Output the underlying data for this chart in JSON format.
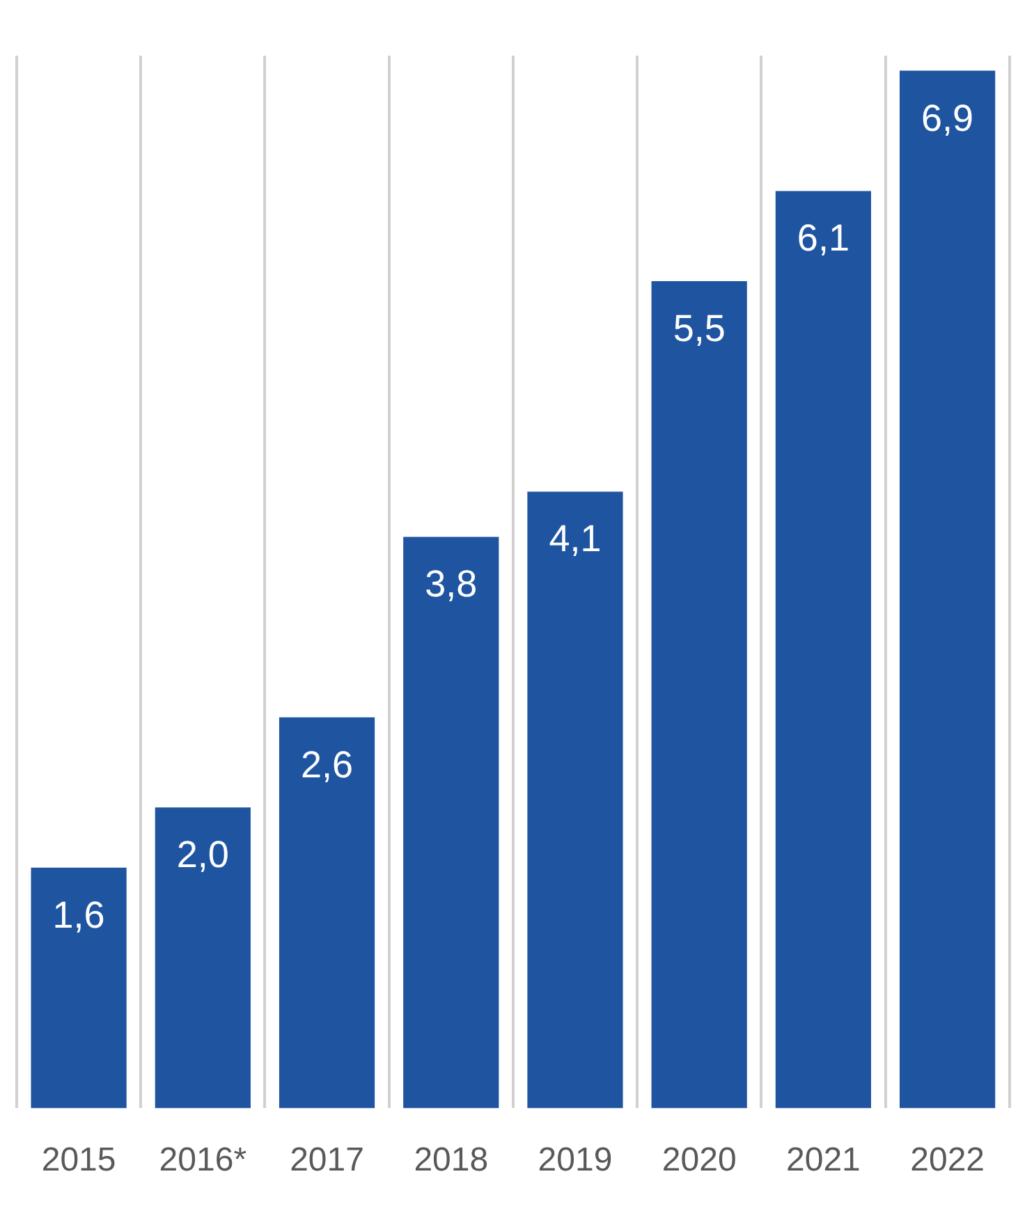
{
  "chart_data": {
    "type": "bar",
    "categories": [
      "2015",
      "2016*",
      "2017",
      "2018",
      "2019",
      "2020",
      "2021",
      "2022"
    ],
    "values": [
      1.6,
      2.0,
      2.6,
      3.8,
      4.1,
      5.5,
      6.1,
      6.9
    ],
    "value_labels": [
      "1,6",
      "2,0",
      "2,6",
      "3,8",
      "4,1",
      "5,5",
      "6,1",
      "6,9"
    ],
    "color": "#1f55a0",
    "grid": "x",
    "legend": false
  }
}
